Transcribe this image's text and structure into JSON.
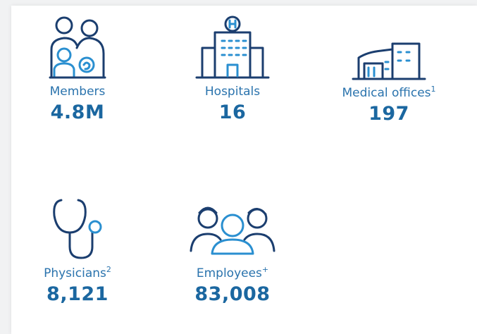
{
  "stats": [
    {
      "label": "Members",
      "value": "4.8M"
    },
    {
      "label": "Hospitals",
      "value": "16"
    },
    {
      "label": "Medical offices",
      "note": "1",
      "value": "197"
    },
    {
      "label": "Physicians",
      "note": "2",
      "value": "8,121"
    },
    {
      "label": "Employees",
      "note": "+",
      "value": "83,008"
    }
  ]
}
